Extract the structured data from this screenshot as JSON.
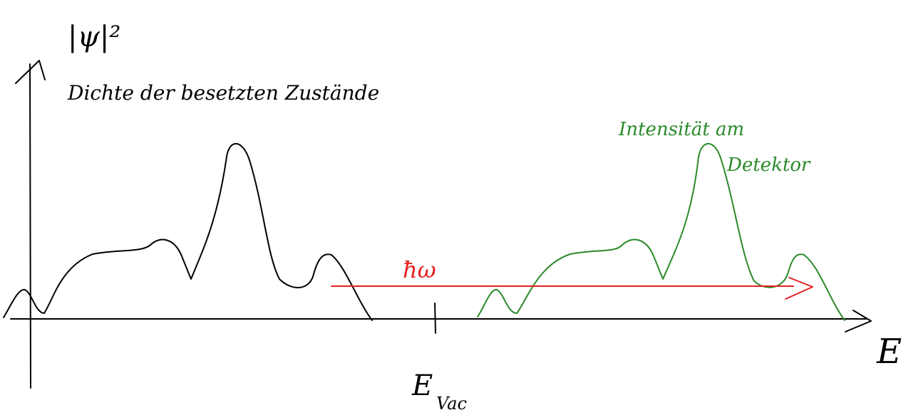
{
  "axes": {
    "y_label": "|ψ|²",
    "x_label": "E",
    "tick_label": "E",
    "tick_subscript": "Vac"
  },
  "curves": {
    "occupied_title": "Dichte der besetzten Zustände",
    "detector_title": [
      "Intensität am",
      "Detektor"
    ],
    "photon_label": "ħω"
  }
}
